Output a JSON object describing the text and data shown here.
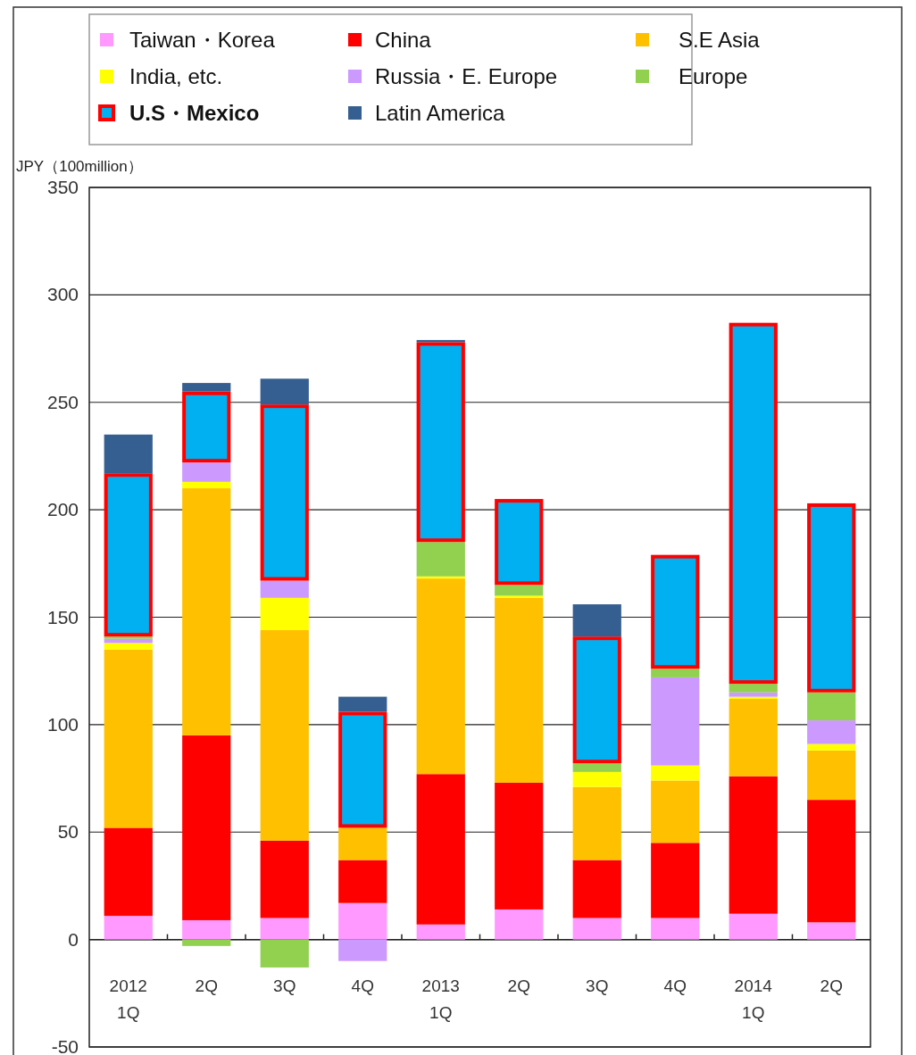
{
  "chart_data": {
    "type": "bar",
    "stacked": true,
    "ylabel": "JPY（100million）",
    "categories": [
      "2012\n1Q",
      "2Q",
      "3Q",
      "4Q",
      "2013\n1Q",
      "2Q",
      "3Q",
      "4Q",
      "2014\n1Q",
      "2Q"
    ],
    "series": [
      {
        "name": "Taiwan・Korea",
        "color": "#ff99ff",
        "values": [
          11,
          9,
          10,
          17,
          7,
          14,
          10,
          10,
          12,
          8
        ]
      },
      {
        "name": "China",
        "color": "#ff0000",
        "values": [
          41,
          86,
          36,
          20,
          70,
          59,
          27,
          35,
          64,
          57
        ]
      },
      {
        "name": "S.E Asia",
        "color": "#ffc000",
        "values": [
          83,
          115,
          98,
          15,
          91,
          86,
          34,
          29,
          36,
          23
        ]
      },
      {
        "name": "India, etc.",
        "color": "#ffff00",
        "values": [
          3,
          3,
          15,
          0,
          1,
          1,
          7,
          7,
          1,
          3
        ]
      },
      {
        "name": "Russia・E. Europe",
        "color": "#cc99ff",
        "values": [
          2,
          9,
          8,
          -10,
          0,
          0,
          0,
          41,
          2,
          11
        ]
      },
      {
        "name": "Europe",
        "color": "#92d050",
        "values": [
          1,
          -3,
          -13,
          0,
          16,
          5,
          4,
          4,
          4,
          13
        ]
      },
      {
        "name": "U.S・Mexico",
        "color": "#00b0f0",
        "values": [
          76,
          33,
          82,
          54,
          93,
          40,
          59,
          53,
          168,
          88
        ]
      },
      {
        "name": "Latin America",
        "color": "#365f91",
        "values": [
          18,
          4,
          12,
          7,
          1,
          0,
          15,
          0,
          0,
          0
        ]
      }
    ],
    "ylim": [
      -50,
      350
    ],
    "yticks": [
      -50,
      0,
      50,
      100,
      150,
      200,
      250,
      300,
      350
    ],
    "grid": "y",
    "legend": "top"
  }
}
